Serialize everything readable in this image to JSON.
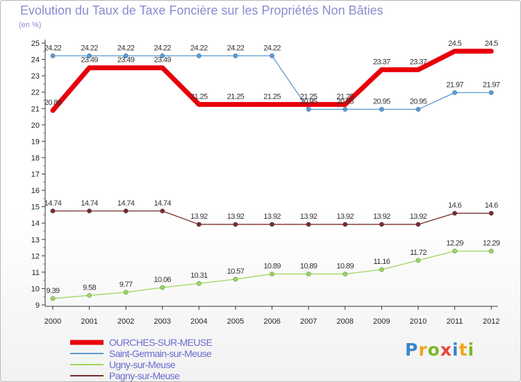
{
  "title": "Evolution du Taux de Taxe Foncière sur les Propriétés Non Bâties",
  "unit": "(en %)",
  "logo": {
    "chars": [
      "P",
      "r",
      "o",
      "x",
      "i",
      "t",
      "i"
    ],
    "colors": [
      "#3a86c8",
      "#f2a51a",
      "#7ab929",
      "#e8453c",
      "#3a86c8",
      "#f2a51a",
      "#7ab929"
    ]
  },
  "chart_data": {
    "type": "line",
    "x": [
      2000,
      2001,
      2002,
      2003,
      2004,
      2005,
      2006,
      2007,
      2008,
      2009,
      2010,
      2011,
      2012
    ],
    "ylim": [
      9,
      25
    ],
    "yticks": [
      9,
      10,
      11,
      12,
      13,
      14,
      15,
      16,
      17,
      18,
      19,
      20,
      21,
      22,
      23,
      24,
      25
    ],
    "grid": false,
    "legend_position": "bottom-left",
    "series": [
      {
        "name": "OURCHES-SUR-MEUSE",
        "color": "#e8000b",
        "width": 7,
        "marker": false,
        "values": [
          20.88,
          23.49,
          23.49,
          23.49,
          21.25,
          21.25,
          21.25,
          21.25,
          21.25,
          23.37,
          23.37,
          24.5,
          24.5
        ],
        "labels": [
          "20.88",
          "23.49",
          "23.49",
          "23.49",
          "21.25",
          "21.25",
          "21.25",
          "21.25",
          "21.25",
          "23.37",
          "23.37",
          "24.5",
          "24.5"
        ]
      },
      {
        "name": "Saint-Germain-sur-Meuse",
        "color": "#5c9ad2",
        "width": 1.3,
        "marker": true,
        "values": [
          24.22,
          24.22,
          24.22,
          24.22,
          24.22,
          24.22,
          24.22,
          20.95,
          20.95,
          20.95,
          20.95,
          21.97,
          21.97
        ],
        "labels": [
          "24.22",
          "24.22",
          "24.22",
          "24.22",
          "24.22",
          "24.22",
          "24.22",
          "20.95",
          "20.95",
          "20.95",
          "20.95",
          "21.97",
          "21.97"
        ]
      },
      {
        "name": "Ugny-sur-Meuse",
        "color": "#9dd65a",
        "width": 1.3,
        "marker": true,
        "values": [
          9.39,
          9.58,
          9.77,
          10.06,
          10.31,
          10.57,
          10.89,
          10.89,
          10.89,
          11.16,
          11.72,
          12.29,
          12.29
        ],
        "labels": [
          "9.39",
          "9.58",
          "9.77",
          "10.06",
          "10.31",
          "10.57",
          "10.89",
          "10.89",
          "10.89",
          "11.16",
          "11.72",
          "12.29",
          "12.29"
        ]
      },
      {
        "name": "Pagny-sur-Meuse",
        "color": "#7a2b2b",
        "width": 1.3,
        "marker": true,
        "values": [
          14.74,
          14.74,
          14.74,
          14.74,
          13.92,
          13.92,
          13.92,
          13.92,
          13.92,
          13.92,
          13.92,
          14.6,
          14.6
        ],
        "labels": [
          "14.74",
          "14.74",
          "14.74",
          "14.74",
          "13.92",
          "13.92",
          "13.92",
          "13.92",
          "13.92",
          "13.92",
          "13.92",
          "14.6",
          "14.6"
        ]
      }
    ]
  }
}
